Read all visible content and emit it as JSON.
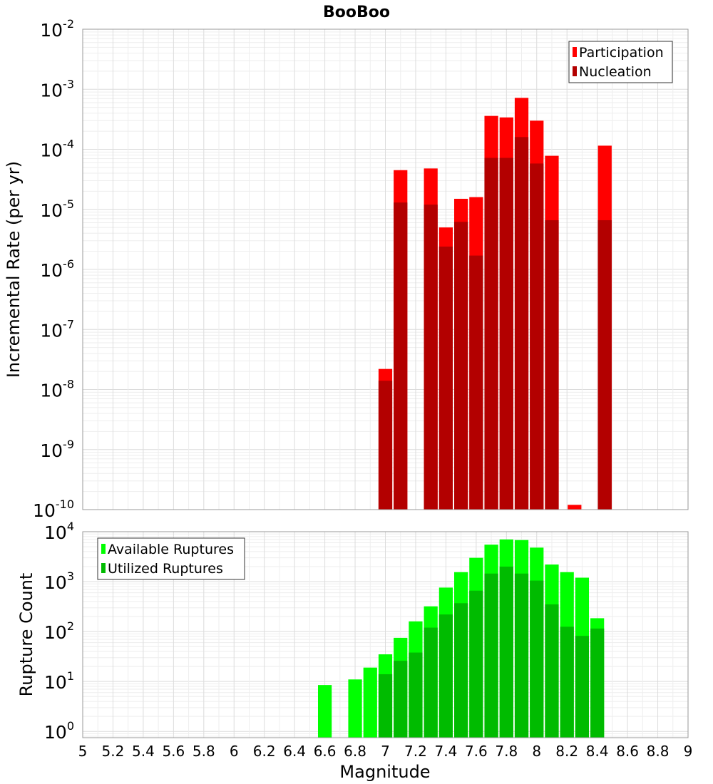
{
  "chart_data": {
    "title": "BooBoo",
    "xlabel": "Magnitude",
    "x_ticks": [
      "5",
      "5.2",
      "5.4",
      "5.6",
      "5.8",
      "6",
      "6.2",
      "6.4",
      "6.6",
      "6.8",
      "7",
      "7.2",
      "7.4",
      "7.6",
      "7.8",
      "8",
      "8.2",
      "8.4",
      "8.6",
      "8.8",
      "9"
    ],
    "xlim": [
      5,
      9
    ],
    "bin_width": 0.1,
    "colors": {
      "participation": "#ff0000",
      "nucleation": "#b30000",
      "available": "#00ff00",
      "utilized": "#00bb00"
    },
    "plots": [
      {
        "type": "bar",
        "y_scale": "log",
        "ylabel": "Incremental Rate (per yr)",
        "ylim": [
          1e-10,
          0.01
        ],
        "y_ticks": [
          {
            "base": "10",
            "exp": "-10"
          },
          {
            "base": "10",
            "exp": "-9"
          },
          {
            "base": "10",
            "exp": "-8"
          },
          {
            "base": "10",
            "exp": "-7"
          },
          {
            "base": "10",
            "exp": "-6"
          },
          {
            "base": "10",
            "exp": "-5"
          },
          {
            "base": "10",
            "exp": "-4"
          },
          {
            "base": "10",
            "exp": "-3"
          },
          {
            "base": "10",
            "exp": "-2"
          }
        ],
        "legend_position": "top-right",
        "series": [
          {
            "name": "Participation",
            "x": [
              7.0,
              7.1,
              7.3,
              7.4,
              7.5,
              7.6,
              7.7,
              7.8,
              7.9,
              8.0,
              8.1,
              8.25,
              8.45
            ],
            "values": [
              2.2e-08,
              4.5e-05,
              4.8e-05,
              5e-06,
              1.5e-05,
              1.6e-05,
              0.00036,
              0.00034,
              0.00072,
              0.0003,
              7.8e-05,
              1.2e-10,
              0.000115
            ]
          },
          {
            "name": "Nucleation",
            "x": [
              7.0,
              7.1,
              7.3,
              7.4,
              7.5,
              7.6,
              7.7,
              7.8,
              7.9,
              8.0,
              8.1,
              8.45
            ],
            "values": [
              1.4e-08,
              1.3e-05,
              1.2e-05,
              2.4e-06,
              6.2e-06,
              1.7e-06,
              7.2e-05,
              7.2e-05,
              0.00016,
              5.8e-05,
              6.6e-06,
              6.6e-06
            ]
          }
        ]
      },
      {
        "type": "bar",
        "y_scale": "log",
        "ylabel": "Rupture Count",
        "ylim": [
          0.75,
          10000
        ],
        "y_ticks": [
          {
            "base": "10",
            "exp": "0"
          },
          {
            "base": "10",
            "exp": "1"
          },
          {
            "base": "10",
            "exp": "2"
          },
          {
            "base": "10",
            "exp": "3"
          },
          {
            "base": "10",
            "exp": "4"
          }
        ],
        "legend_position": "top-left",
        "series": [
          {
            "name": "Available Ruptures",
            "x": [
              6.6,
              6.8,
              6.9,
              7.0,
              7.1,
              7.2,
              7.3,
              7.4,
              7.5,
              7.6,
              7.7,
              7.8,
              7.9,
              8.0,
              8.1,
              8.2,
              8.3,
              8.4
            ],
            "values": [
              8.5,
              11,
              19,
              35,
              75,
              160,
              320,
              760,
              1550,
              3000,
              5500,
              7000,
              6800,
              4800,
              2200,
              1550,
              1200,
              185
            ]
          },
          {
            "name": "Utilized Ruptures",
            "x": [
              7.0,
              7.1,
              7.2,
              7.3,
              7.4,
              7.5,
              7.6,
              7.7,
              7.8,
              7.9,
              8.0,
              8.1,
              8.2,
              8.3,
              8.4
            ],
            "values": [
              14,
              26,
              38,
              120,
              220,
              370,
              660,
              1450,
              2000,
              1450,
              1050,
              350,
              125,
              82,
              115
            ]
          }
        ]
      }
    ]
  }
}
